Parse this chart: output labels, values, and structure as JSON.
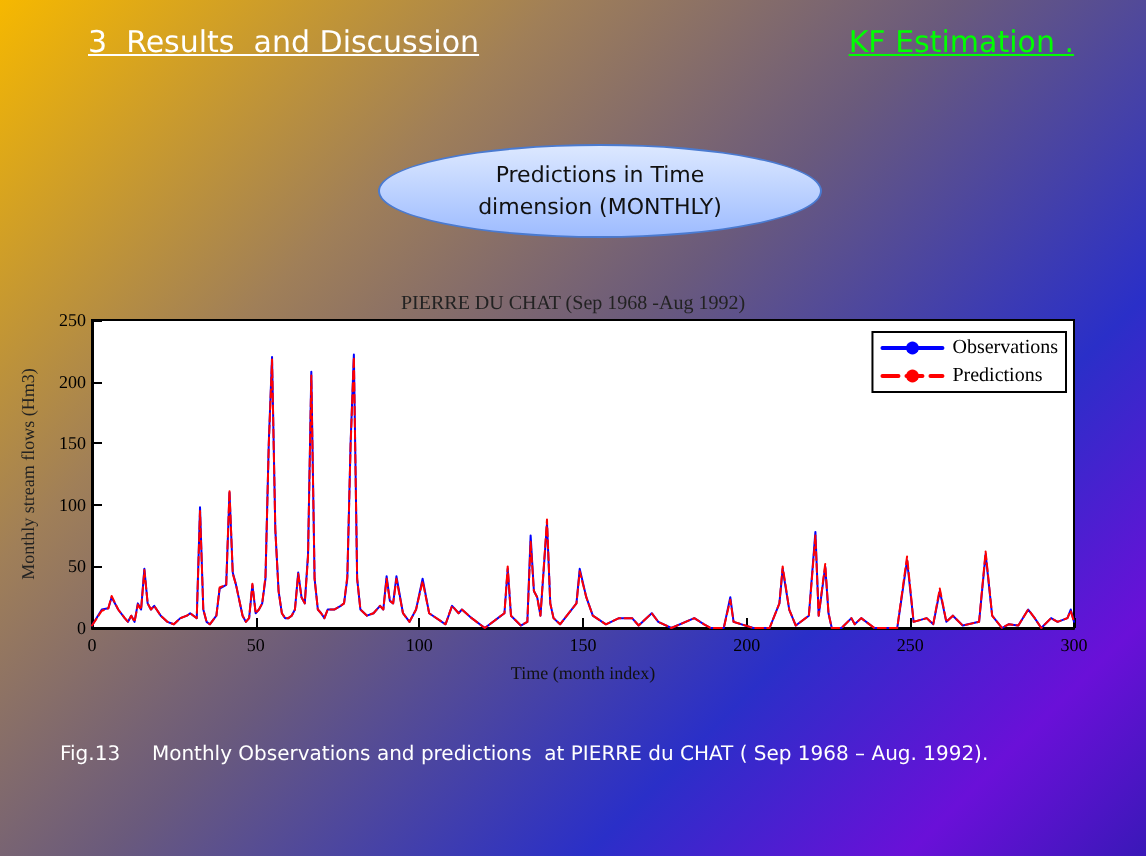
{
  "chart_data": {
    "type": "line",
    "title": "PIERRE DU CHAT (Sep 1968 -Aug 1992)",
    "xlabel": "Time (month index)",
    "ylabel": "Monthly stream flows (Hm3)",
    "annotations": [
      "3  Results  and Discussion",
      "KF Estimation .",
      "Predictions in Time dimension (MONTHLY)",
      "Fig.13     Monthly Observations and predictions  at PIERRE du CHAT ( Sep 1968 – Aug. 1992)."
    ],
    "x": [
      0,
      3,
      5,
      6,
      8,
      10,
      11,
      12,
      13,
      14,
      15,
      16,
      17,
      18,
      19,
      21,
      23,
      25,
      27,
      29,
      30,
      31,
      32,
      33,
      34,
      35,
      36,
      38,
      39,
      41,
      42,
      43,
      44,
      46,
      47,
      48,
      49,
      50,
      51,
      52,
      53,
      54,
      55,
      56,
      57,
      58,
      59,
      60,
      61,
      62,
      63,
      64,
      65,
      66,
      67,
      68,
      69,
      70,
      71,
      72,
      73,
      74,
      76,
      77,
      78,
      79,
      80,
      81,
      82,
      84,
      86,
      88,
      89,
      90,
      91,
      92,
      93,
      95,
      97,
      99,
      101,
      103,
      108,
      110,
      112,
      113,
      116,
      120,
      124,
      126,
      127,
      128,
      131,
      133,
      134,
      135,
      136,
      137,
      139,
      140,
      141,
      143,
      148,
      149,
      151,
      153,
      157,
      161,
      165,
      167,
      171,
      173,
      177,
      184,
      187,
      189,
      193,
      195,
      196,
      202,
      207,
      210,
      211,
      213,
      215,
      219,
      221,
      222,
      224,
      225,
      226,
      229,
      232,
      233,
      235,
      239,
      246,
      249,
      251,
      255,
      257,
      259,
      261,
      263,
      266,
      271,
      273,
      275,
      278,
      280,
      283,
      286,
      288,
      290,
      293,
      295,
      298,
      299,
      300
    ],
    "series": [
      {
        "name": "Observations",
        "color": "#0000ff",
        "line_style": "solid",
        "values": [
          2,
          15,
          16,
          25,
          15,
          8,
          5,
          10,
          5,
          20,
          15,
          48,
          20,
          15,
          18,
          10,
          5,
          3,
          8,
          10,
          12,
          10,
          8,
          98,
          15,
          5,
          3,
          10,
          32,
          35,
          110,
          45,
          35,
          10,
          5,
          8,
          35,
          12,
          15,
          20,
          40,
          150,
          220,
          80,
          30,
          12,
          8,
          8,
          10,
          15,
          45,
          25,
          20,
          60,
          208,
          40,
          15,
          12,
          8,
          15,
          15,
          15,
          18,
          20,
          40,
          150,
          222,
          40,
          15,
          10,
          12,
          18,
          15,
          42,
          22,
          20,
          42,
          12,
          5,
          15,
          40,
          12,
          3,
          18,
          12,
          15,
          8,
          0,
          8,
          12,
          48,
          10,
          2,
          5,
          75,
          30,
          25,
          10,
          85,
          20,
          8,
          3,
          20,
          48,
          25,
          10,
          3,
          8,
          8,
          2,
          12,
          5,
          0,
          8,
          3,
          0,
          0,
          25,
          5,
          0,
          0,
          20,
          48,
          15,
          2,
          10,
          78,
          10,
          50,
          12,
          0,
          0,
          8,
          3,
          8,
          0,
          0,
          55,
          5,
          8,
          3,
          30,
          5,
          10,
          2,
          5,
          60,
          10,
          0,
          3,
          2,
          15,
          8,
          0,
          8,
          5,
          8,
          15,
          5
        ]
      },
      {
        "name": "Predictions",
        "color": "#ff0000",
        "line_style": "dashed",
        "values": [
          2,
          14,
          16,
          26,
          15,
          8,
          5,
          10,
          5,
          19,
          15,
          47,
          20,
          15,
          18,
          10,
          5,
          3,
          8,
          10,
          12,
          10,
          8,
          95,
          15,
          5,
          3,
          10,
          33,
          35,
          112,
          44,
          35,
          10,
          5,
          8,
          36,
          12,
          15,
          20,
          42,
          148,
          218,
          80,
          30,
          12,
          8,
          8,
          10,
          15,
          44,
          25,
          20,
          58,
          205,
          40,
          15,
          12,
          8,
          15,
          15,
          15,
          18,
          20,
          42,
          148,
          220,
          40,
          15,
          10,
          12,
          18,
          15,
          40,
          22,
          20,
          40,
          12,
          5,
          15,
          38,
          12,
          3,
          18,
          12,
          15,
          8,
          0,
          8,
          12,
          50,
          10,
          2,
          5,
          70,
          30,
          25,
          10,
          88,
          20,
          8,
          3,
          20,
          46,
          25,
          10,
          3,
          8,
          8,
          2,
          12,
          5,
          0,
          8,
          3,
          0,
          0,
          23,
          5,
          0,
          0,
          20,
          50,
          15,
          2,
          10,
          75,
          10,
          52,
          12,
          0,
          0,
          8,
          3,
          8,
          0,
          0,
          58,
          5,
          8,
          3,
          32,
          5,
          10,
          2,
          5,
          62,
          10,
          0,
          3,
          2,
          15,
          8,
          0,
          8,
          5,
          8,
          14,
          5
        ]
      }
    ],
    "xlim": [
      0,
      300
    ],
    "xticks": [
      0,
      50,
      100,
      150,
      200,
      250,
      300
    ],
    "ylim": [
      0,
      250
    ],
    "yticks": [
      0,
      50,
      100,
      150,
      200,
      250
    ],
    "grid": false,
    "legend": "top right",
    "marker": "none"
  }
}
